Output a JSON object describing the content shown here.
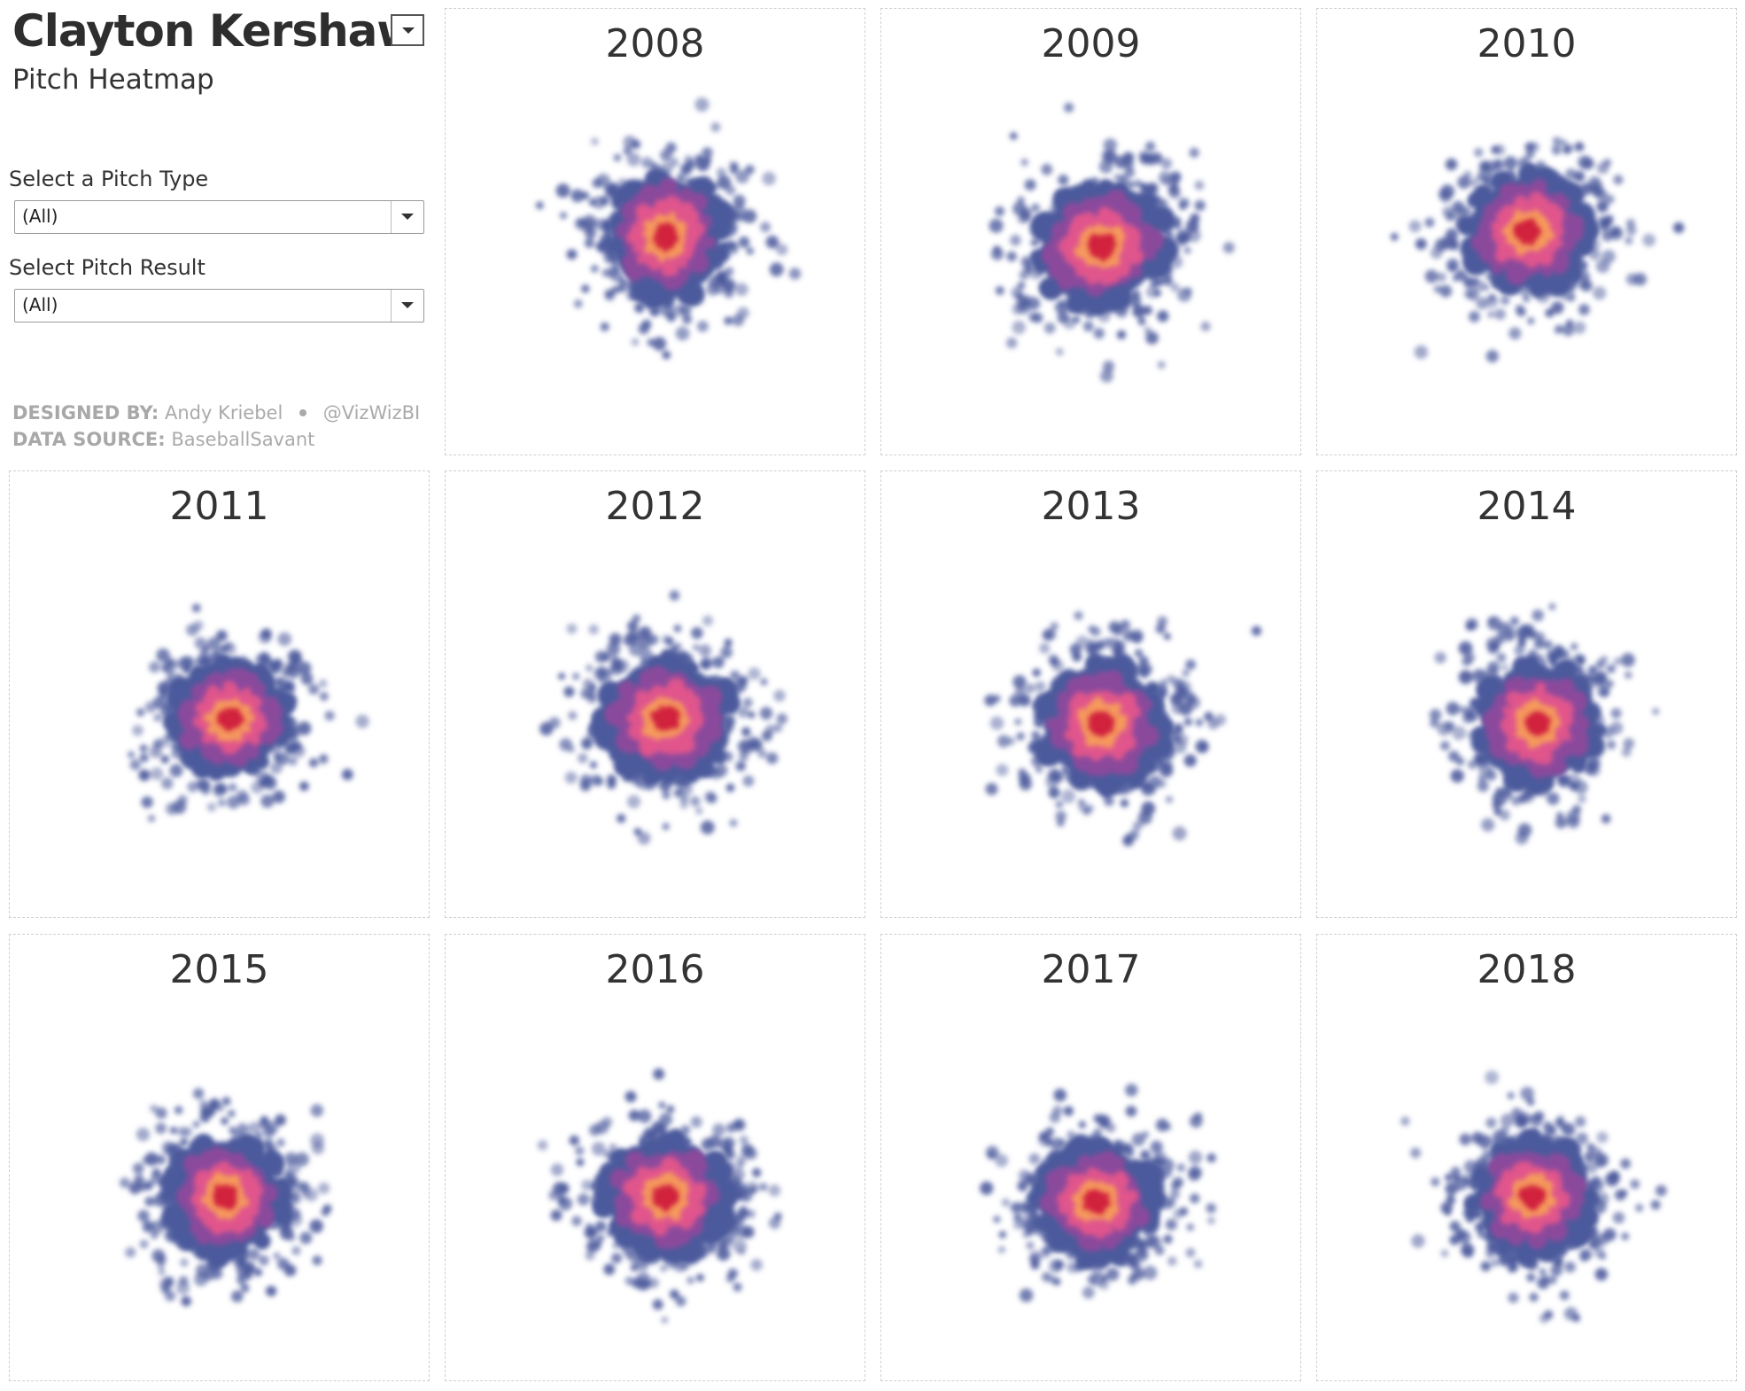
{
  "header": {
    "title": "Clayton Kershaw",
    "subtitle": "Pitch Heatmap"
  },
  "filters": {
    "pitch_type": {
      "label": "Select a Pitch Type",
      "value": "(All)"
    },
    "pitch_result": {
      "label": "Select Pitch Result",
      "value": "(All)"
    }
  },
  "credits": {
    "designed_label": "DESIGNED BY:",
    "designer": "Andy Kriebel",
    "handle": "@VizWizBI",
    "source_label": "DATA SOURCE:",
    "source": "BaseballSavant"
  },
  "colors": {
    "outer": "#4c5a9c",
    "mid": "#8b4a9c",
    "inner": "#e0558c",
    "hot": "#f59a5c",
    "core": "#d01f3c"
  },
  "chart_data": {
    "type": "heatmap",
    "panels": [
      {
        "year": "2008",
        "center": [
          0.1,
          0.3
        ],
        "spread": [
          0.85,
          0.9
        ],
        "tilt": 0
      },
      {
        "year": "2009",
        "center": [
          0.1,
          0.2
        ],
        "spread": [
          0.95,
          0.85
        ],
        "tilt": -25
      },
      {
        "year": "2010",
        "center": [
          0.0,
          0.35
        ],
        "spread": [
          0.9,
          0.85
        ],
        "tilt": -10
      },
      {
        "year": "2011",
        "center": [
          0.1,
          0.1
        ],
        "spread": [
          0.85,
          0.8
        ],
        "tilt": 0
      },
      {
        "year": "2012",
        "center": [
          0.1,
          0.1
        ],
        "spread": [
          0.95,
          0.85
        ],
        "tilt": 0
      },
      {
        "year": "2013",
        "center": [
          0.1,
          0.05
        ],
        "spread": [
          0.9,
          0.9
        ],
        "tilt": 0
      },
      {
        "year": "2014",
        "center": [
          0.1,
          0.05
        ],
        "spread": [
          0.85,
          0.9
        ],
        "tilt": 0
      },
      {
        "year": "2015",
        "center": [
          0.05,
          -0.05
        ],
        "spread": [
          0.85,
          0.85
        ],
        "tilt": -15
      },
      {
        "year": "2016",
        "center": [
          0.1,
          -0.05
        ],
        "spread": [
          0.9,
          0.85
        ],
        "tilt": 0
      },
      {
        "year": "2017",
        "center": [
          0.05,
          -0.1
        ],
        "spread": [
          0.9,
          0.8
        ],
        "tilt": -10
      },
      {
        "year": "2018",
        "center": [
          0.05,
          -0.05
        ],
        "spread": [
          0.85,
          0.85
        ],
        "tilt": 0
      }
    ]
  }
}
